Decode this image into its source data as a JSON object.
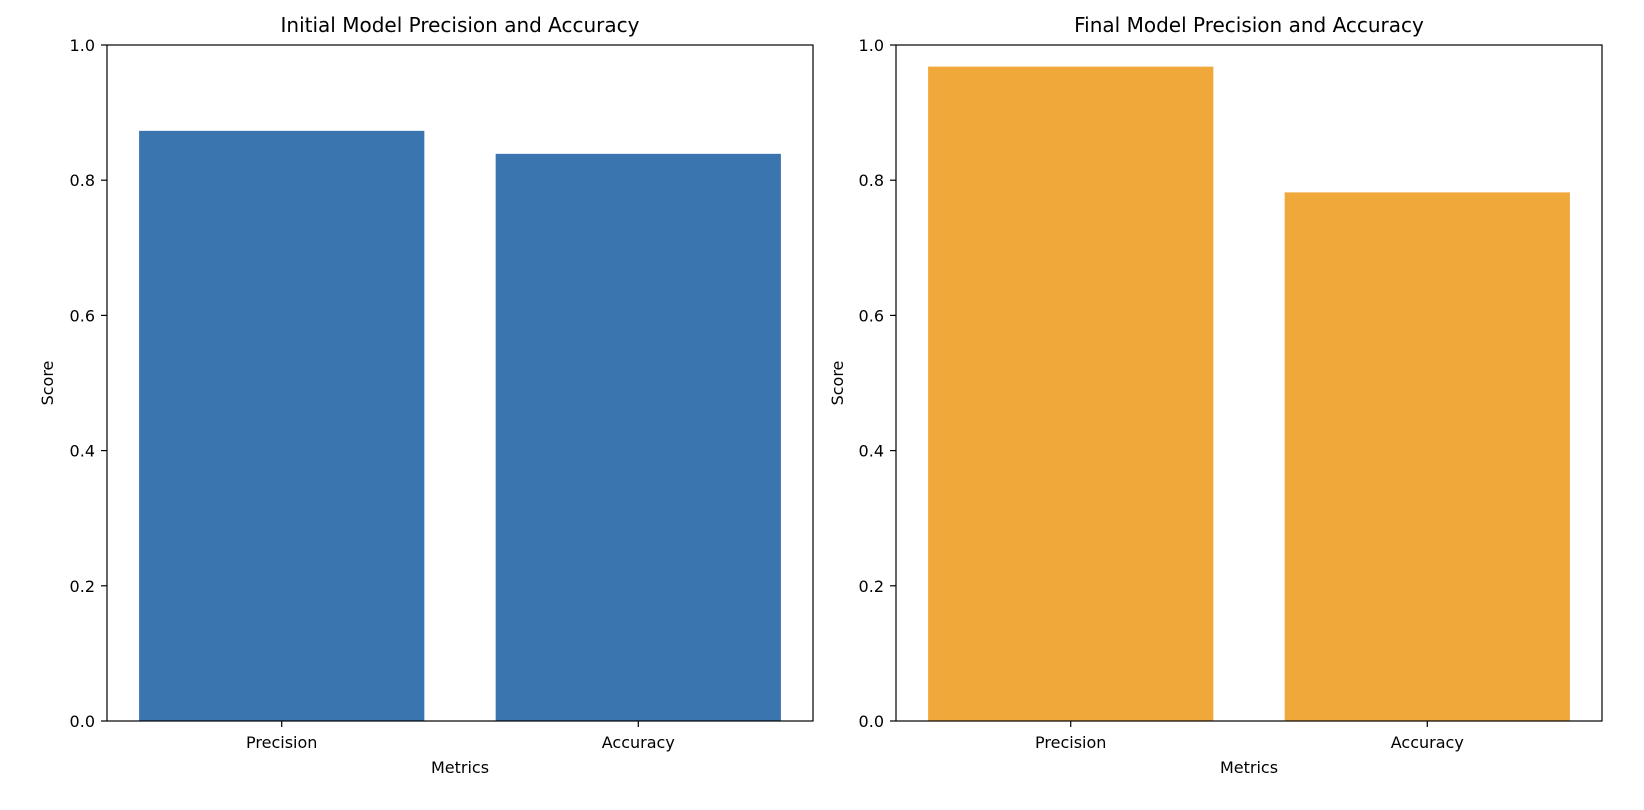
{
  "colors": {
    "initial_bar": "#3a75af",
    "final_bar": "#f0a83b"
  },
  "chart_data": [
    {
      "type": "bar",
      "title": "Initial Model Precision and Accuracy",
      "xlabel": "Metrics",
      "ylabel": "Score",
      "categories": [
        "Precision",
        "Accuracy"
      ],
      "values": [
        0.873,
        0.839
      ],
      "ylim": [
        0,
        1.0
      ],
      "yticks": [
        "0.0",
        "0.2",
        "0.4",
        "0.6",
        "0.8",
        "1.0"
      ],
      "color": "#3a75af",
      "grid": false
    },
    {
      "type": "bar",
      "title": "Final Model Precision and Accuracy",
      "xlabel": "Metrics",
      "ylabel": "Score",
      "categories": [
        "Precision",
        "Accuracy"
      ],
      "values": [
        0.968,
        0.782
      ],
      "ylim": [
        0,
        1.0
      ],
      "yticks": [
        "0.0",
        "0.2",
        "0.4",
        "0.6",
        "0.8",
        "1.0"
      ],
      "color": "#f0a83b",
      "grid": false
    }
  ]
}
